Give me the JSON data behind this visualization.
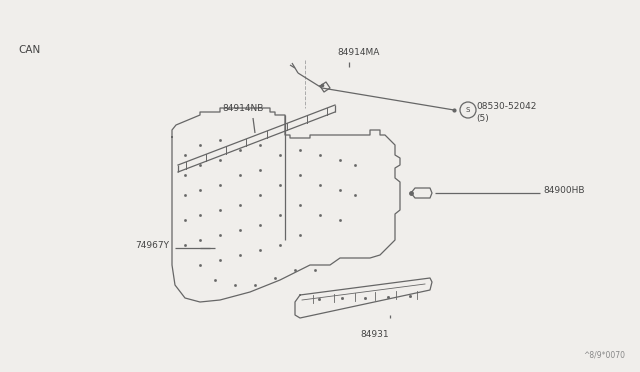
{
  "bg_color": "#f0eeeb",
  "line_color": "#666666",
  "text_color": "#444444",
  "title_label": "CAN",
  "watermark": "^8/9*0070",
  "label_84914MA": "84914MA",
  "label_84914NB": "84914NB",
  "label_08530": "08530-52042",
  "label_08530b": "(5)",
  "label_84900HB": "84900HB",
  "label_74967Y": "74967Y",
  "label_84931": "84931"
}
